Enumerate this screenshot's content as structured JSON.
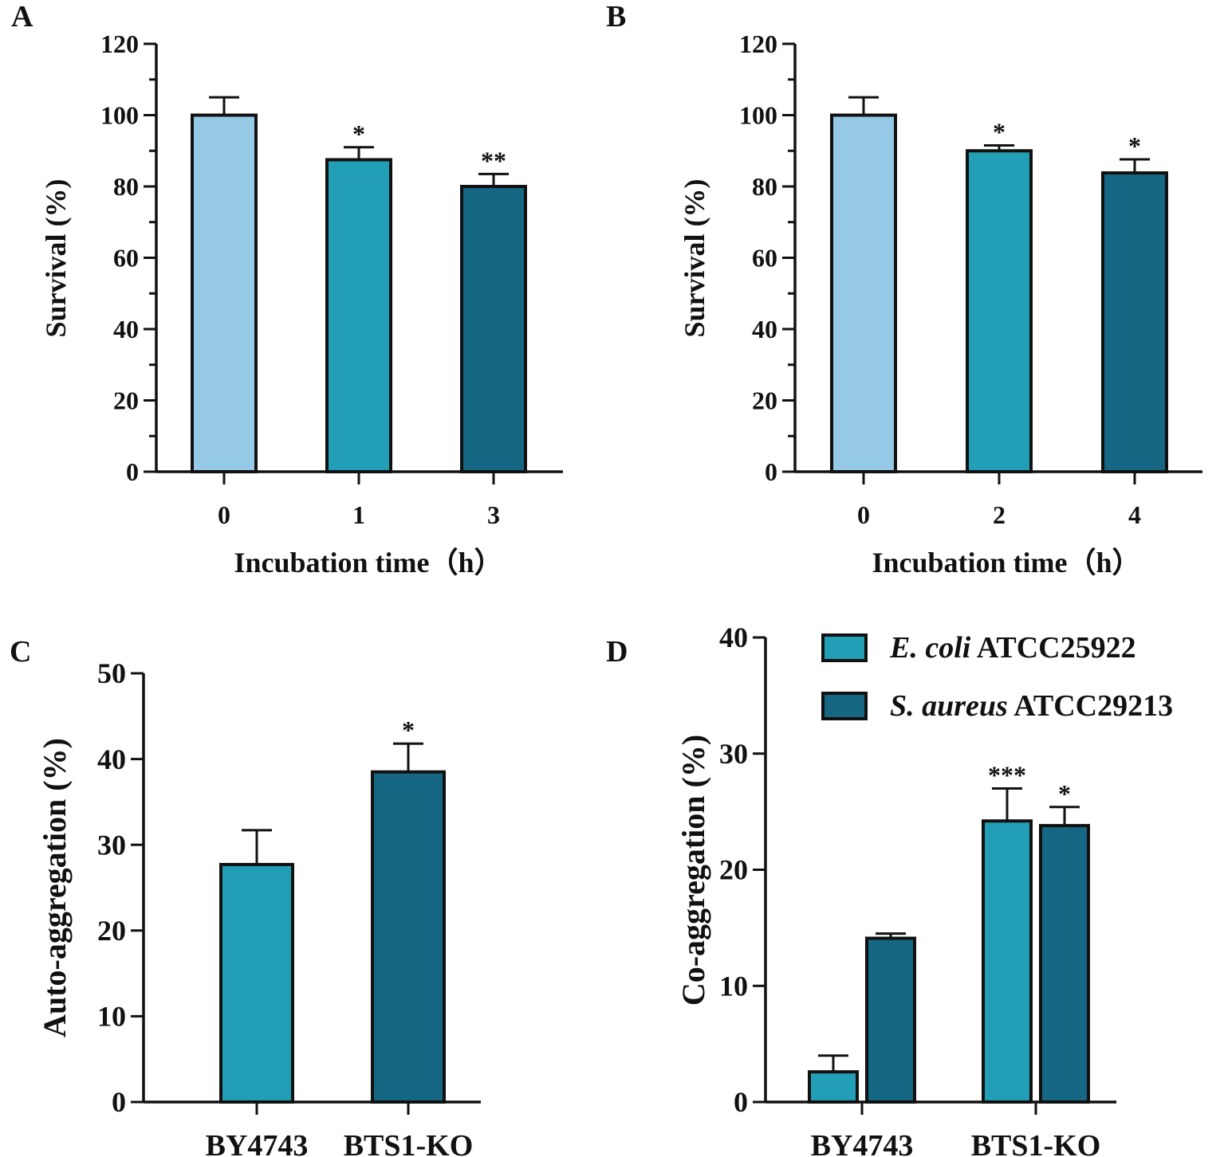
{
  "colors": {
    "light_blue": "#95c9e6",
    "teal": "#229fb6",
    "dark_teal": "#166783",
    "axis": "#111111"
  },
  "chart_data": [
    {
      "panel": "A",
      "type": "bar",
      "ylabel": "Survival (%)",
      "xlabel": "Incubation time（h）",
      "ylim": [
        0,
        120
      ],
      "yticks": [
        0,
        20,
        40,
        60,
        80,
        100,
        120
      ],
      "categories": [
        "0",
        "1",
        "3"
      ],
      "values": [
        100,
        87.5,
        80
      ],
      "errors": [
        5,
        3.5,
        3.5
      ],
      "bar_colors": [
        "#95c9e6",
        "#229fb6",
        "#166783"
      ],
      "annotations": [
        "",
        "*",
        "**"
      ]
    },
    {
      "panel": "B",
      "type": "bar",
      "ylabel": "Survival (%)",
      "xlabel": "Incubation time（h）",
      "ylim": [
        0,
        120
      ],
      "yticks": [
        0,
        20,
        40,
        60,
        80,
        100,
        120
      ],
      "categories": [
        "0",
        "2",
        "4"
      ],
      "values": [
        100,
        90,
        83.8
      ],
      "errors": [
        5,
        1.5,
        3.8
      ],
      "bar_colors": [
        "#95c9e6",
        "#229fb6",
        "#166783"
      ],
      "annotations": [
        "",
        "*",
        "*"
      ]
    },
    {
      "panel": "C",
      "type": "bar",
      "ylabel": "Auto-aggregation (%)",
      "xlabel": "",
      "ylim": [
        0,
        50
      ],
      "yticks": [
        0,
        10,
        20,
        30,
        40,
        50
      ],
      "categories": [
        "BY4743",
        "BTS1-KO"
      ],
      "values": [
        27.7,
        38.5
      ],
      "errors": [
        4,
        3.3
      ],
      "bar_colors": [
        "#229fb6",
        "#166783"
      ],
      "annotations": [
        "",
        "*"
      ]
    },
    {
      "panel": "D",
      "type": "bar",
      "ylabel": "Co-aggregation (%)",
      "xlabel": "",
      "ylim": [
        0,
        40
      ],
      "yticks": [
        0,
        10,
        20,
        30,
        40
      ],
      "categories": [
        "BY4743",
        "BTS1-KO"
      ],
      "series": [
        {
          "name_italic": "E. coli",
          "name_rest": " ATCC25922",
          "color": "#229fb6",
          "values": [
            2.6,
            24.2
          ],
          "errors": [
            1.4,
            2.8
          ],
          "annotations": [
            "",
            "***"
          ]
        },
        {
          "name_italic": "S. aureus",
          "name_rest": " ATCC29213",
          "color": "#166783",
          "values": [
            14.1,
            23.8
          ],
          "errors": [
            0.4,
            1.6
          ],
          "annotations": [
            "",
            "*"
          ]
        }
      ],
      "legend": "top-right"
    }
  ]
}
